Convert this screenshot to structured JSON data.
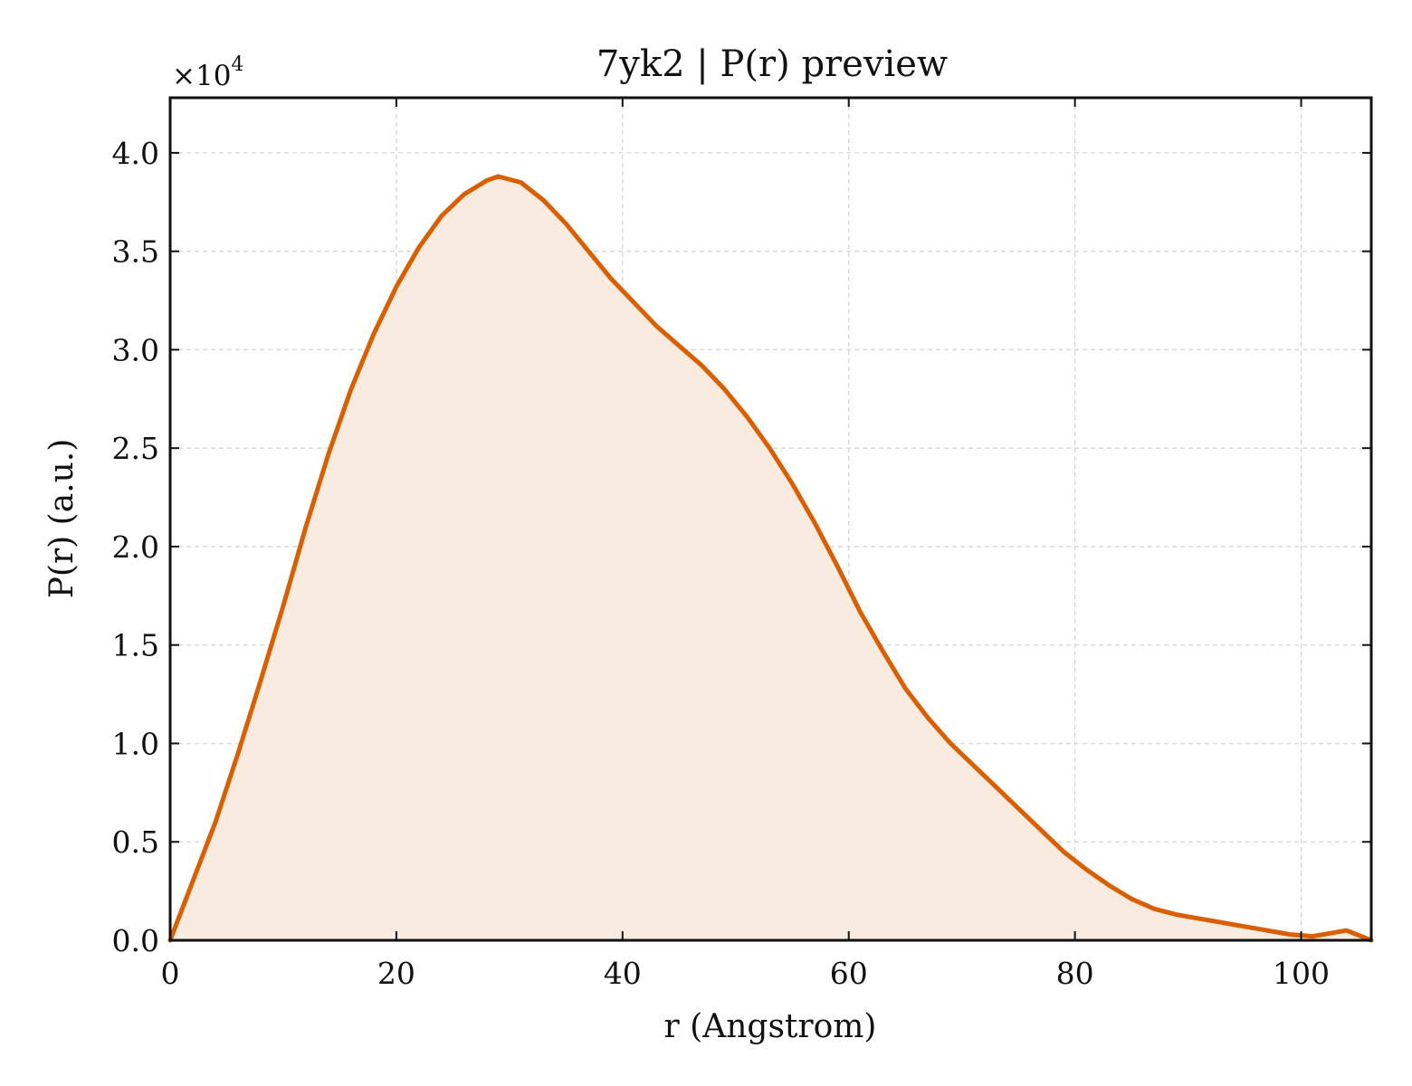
{
  "chart_data": {
    "type": "area",
    "title": "7yk2 | P(r) preview",
    "xlabel": "r (Angstrom)",
    "ylabel": "P(r) (a.u.)",
    "y_multiplier_label": "×10",
    "y_multiplier_exponent": "4",
    "xlim": [
      0,
      106.2
    ],
    "ylim": [
      0,
      4.28
    ],
    "y_scale_factor": 10000,
    "x_ticks": [
      0,
      20,
      40,
      60,
      80,
      100
    ],
    "x_tick_labels": [
      "0",
      "20",
      "40",
      "60",
      "80",
      "100"
    ],
    "y_ticks": [
      0,
      0.5,
      1.0,
      1.5,
      2.0,
      2.5,
      3.0,
      3.5,
      4.0
    ],
    "y_tick_labels": [
      "0.0",
      "0.5",
      "1.0",
      "1.5",
      "2.0",
      "2.5",
      "3.0",
      "3.5",
      "4.0"
    ],
    "grid": true,
    "legend": "none",
    "line_color": "#d95f02",
    "fill_color": "#f9ebe0",
    "series": [
      {
        "x": [
          0,
          2,
          4,
          6,
          8,
          10,
          12,
          14,
          16,
          18,
          20,
          22,
          24,
          26,
          28,
          29,
          31,
          33,
          35,
          37,
          39,
          41,
          43,
          45,
          47,
          49,
          51,
          53,
          55,
          57,
          59,
          61,
          63,
          65,
          67,
          69,
          71,
          73,
          75,
          77,
          79,
          81,
          83,
          85,
          87,
          89,
          91,
          93,
          95,
          97,
          99,
          101,
          103,
          104,
          106.2
        ],
        "y": [
          0.0,
          0.3,
          0.6,
          0.95,
          1.32,
          1.7,
          2.1,
          2.47,
          2.8,
          3.08,
          3.32,
          3.52,
          3.68,
          3.79,
          3.86,
          3.88,
          3.85,
          3.76,
          3.64,
          3.5,
          3.36,
          3.24,
          3.12,
          3.02,
          2.92,
          2.8,
          2.66,
          2.5,
          2.32,
          2.12,
          1.9,
          1.67,
          1.47,
          1.28,
          1.13,
          1.0,
          0.89,
          0.78,
          0.67,
          0.56,
          0.45,
          0.36,
          0.28,
          0.21,
          0.16,
          0.13,
          0.11,
          0.09,
          0.07,
          0.05,
          0.03,
          0.02,
          0.04,
          0.05,
          0.0
        ]
      }
    ]
  }
}
